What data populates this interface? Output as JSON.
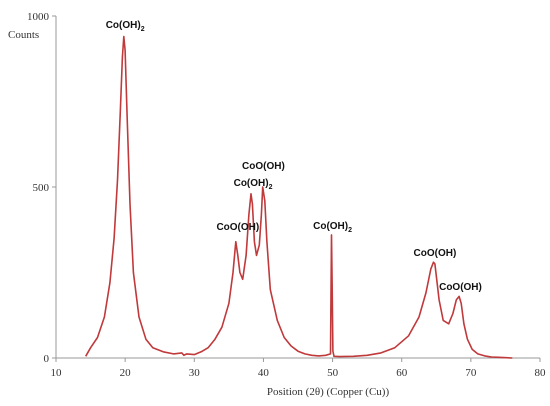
{
  "chart_data": {
    "type": "line",
    "title": "",
    "xlabel": "Position (2θ) (Copper (Cu))",
    "ylabel": "Counts",
    "xlim": [
      10,
      80
    ],
    "ylim": [
      0,
      1000
    ],
    "x_ticks": [
      10,
      20,
      30,
      40,
      50,
      60,
      70,
      80
    ],
    "y_ticks": [
      0,
      500,
      1000
    ],
    "grid": false,
    "legend": "none",
    "line_color": "#c0393b",
    "series": [
      {
        "x": [
          14.3,
          15.0,
          16.0,
          17.0,
          17.8,
          18.4,
          18.9,
          19.3,
          19.6,
          19.8,
          20.0,
          20.3,
          20.7,
          21.2,
          22.0,
          23.0,
          24.0,
          25.5,
          27.0,
          28.2,
          28.5,
          28.9,
          30.0,
          31.0,
          32.0,
          33.0,
          34.0,
          35.0,
          35.6,
          36.0,
          36.3,
          36.6,
          37.0,
          37.5,
          37.9,
          38.2,
          38.4,
          38.7,
          39.0,
          39.4,
          39.7,
          39.9,
          40.2,
          40.5,
          41.0,
          42.0,
          43.0,
          44.0,
          45.0,
          46.0,
          47.0,
          48.0,
          49.0,
          49.7,
          49.85,
          49.95,
          50.05,
          50.2,
          51.0,
          53.0,
          55.0,
          57.0,
          59.0,
          61.0,
          62.5,
          63.5,
          64.2,
          64.6,
          64.8,
          65.0,
          65.4,
          66.0,
          66.8,
          67.4,
          67.9,
          68.3,
          68.6,
          69.0,
          69.5,
          70.2,
          71.0,
          72.0,
          73.0,
          74.0,
          76.0
        ],
        "y": [
          5,
          30,
          60,
          120,
          220,
          350,
          520,
          720,
          880,
          940,
          900,
          700,
          450,
          250,
          120,
          55,
          30,
          18,
          12,
          15,
          8,
          12,
          10,
          18,
          30,
          55,
          90,
          160,
          250,
          340,
          300,
          250,
          230,
          300,
          420,
          480,
          450,
          340,
          300,
          330,
          420,
          500,
          460,
          340,
          200,
          110,
          60,
          35,
          20,
          12,
          8,
          6,
          8,
          12,
          360,
          200,
          20,
          5,
          4,
          5,
          8,
          15,
          30,
          65,
          120,
          190,
          260,
          280,
          275,
          240,
          170,
          110,
          100,
          130,
          170,
          180,
          160,
          100,
          55,
          25,
          12,
          6,
          3,
          2,
          0
        ]
      }
    ],
    "annotations": [
      {
        "label": "Co(OH)",
        "sub": "2",
        "x": 20
      },
      {
        "label": "Co(OH)",
        "sub": "2",
        "x": 38.5
      },
      {
        "label": "CoO(OH)",
        "sub": "",
        "x": 40
      },
      {
        "label": "CoO(OH)",
        "sub": "",
        "x": 36.3
      },
      {
        "label": "Co(OH)",
        "sub": "2",
        "x": 50
      },
      {
        "label": "CoO(OH)",
        "sub": "",
        "x": 64.8
      },
      {
        "label": "CoO(OH)",
        "sub": "",
        "x": 68.5
      }
    ]
  }
}
